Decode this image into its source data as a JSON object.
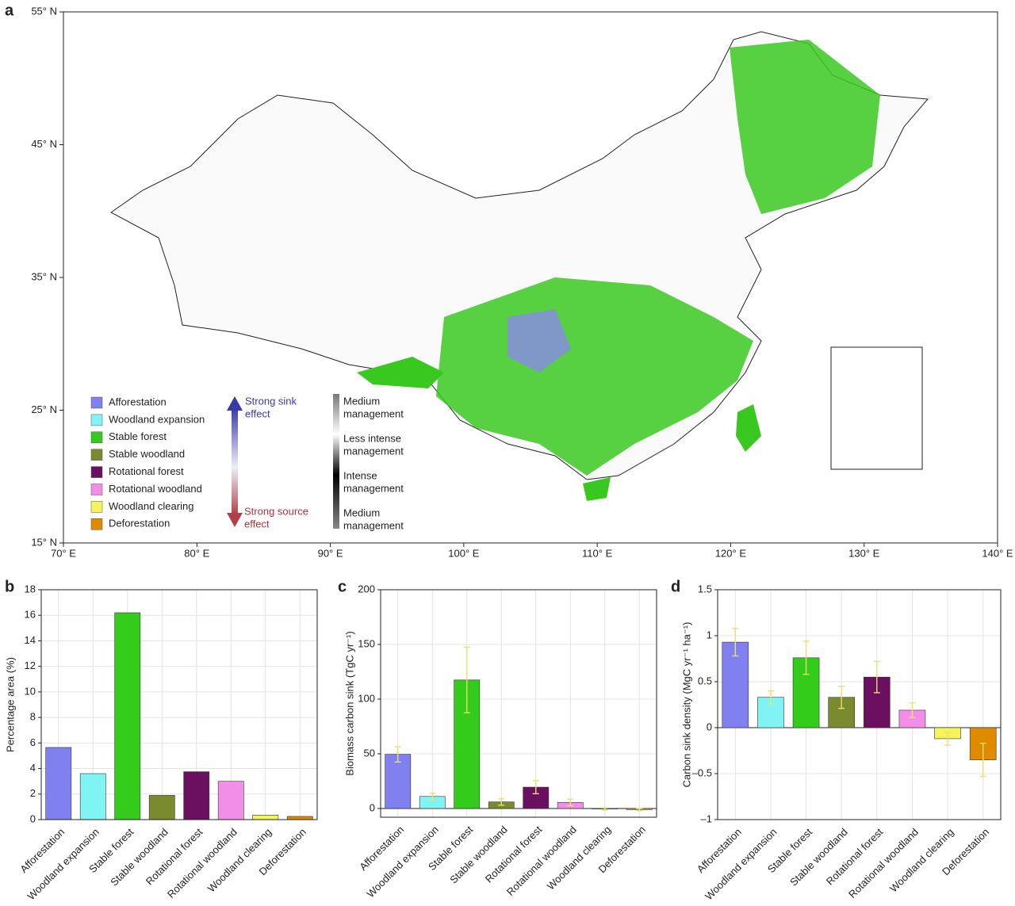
{
  "chart_data": [
    {
      "type": "map",
      "label": "a",
      "xlim": [
        70,
        140
      ],
      "xticks": [
        {
          "value": 70,
          "label": "70° E"
        },
        {
          "value": 80,
          "label": "80° E"
        },
        {
          "value": 90,
          "label": "90° E"
        },
        {
          "value": 100,
          "label": "100° E"
        },
        {
          "value": 110,
          "label": "110° E"
        },
        {
          "value": 120,
          "label": "120° E"
        },
        {
          "value": 130,
          "label": "130° E"
        },
        {
          "value": 140,
          "label": "140° E"
        }
      ],
      "ylim": [
        15,
        55
      ],
      "yticks": [
        {
          "value": 15,
          "label": "15° N"
        },
        {
          "value": 25,
          "label": "25° N"
        },
        {
          "value": 35,
          "label": "35° N"
        },
        {
          "value": 45,
          "label": "45° N"
        },
        {
          "value": 55,
          "label": "55° N"
        }
      ],
      "legend": [
        {
          "name": "Afforestation",
          "color": "#8080f0"
        },
        {
          "name": "Woodland expansion",
          "color": "#80f4f4"
        },
        {
          "name": "Stable forest",
          "color": "#33cc1a"
        },
        {
          "name": "Stable woodland",
          "color": "#7a8a2e"
        },
        {
          "name": "Rotational forest",
          "color": "#6b1060"
        },
        {
          "name": "Rotational woodland",
          "color": "#f28ee8"
        },
        {
          "name": "Woodland clearing",
          "color": "#f5f55a"
        },
        {
          "name": "Deforestation",
          "color": "#e08a00"
        }
      ],
      "sink_label": [
        "Strong sink",
        "effect"
      ],
      "source_label": [
        "Strong source",
        "effect"
      ],
      "management_labels": [
        [
          "Medium",
          "management"
        ],
        [
          "Less intense",
          "management"
        ],
        [
          "Intense",
          "management"
        ],
        [
          "Medium",
          "management"
        ]
      ]
    },
    {
      "type": "bar",
      "label": "b",
      "ylabel": "Percentage area (%)",
      "categories": [
        "Afforestation",
        "Woodland expansion",
        "Stable forest",
        "Stable woodland",
        "Rotational forest",
        "Rotational woodland",
        "Woodland clearing",
        "Deforestation"
      ],
      "colors": [
        "#8080f0",
        "#80f4f4",
        "#33cc1a",
        "#7a8a2e",
        "#6b1060",
        "#f28ee8",
        "#f5f55a",
        "#e08a00"
      ],
      "values": [
        5.65,
        3.6,
        16.2,
        1.9,
        3.75,
        3.0,
        0.35,
        0.25
      ],
      "ylim": [
        0,
        18
      ],
      "yticks": [
        0,
        2,
        4,
        6,
        8,
        10,
        12,
        14,
        16,
        18
      ],
      "grid": true
    },
    {
      "type": "bar",
      "label": "c",
      "ylabel": "Biomass carbon sink (TgC yr⁻¹)",
      "categories": [
        "Afforestation",
        "Woodland expansion",
        "Stable forest",
        "Stable woodland",
        "Rotational forest",
        "Rotational woodland",
        "Woodland clearing",
        "Deforestation"
      ],
      "colors": [
        "#8080f0",
        "#80f4f4",
        "#33cc1a",
        "#7a8a2e",
        "#6b1060",
        "#f28ee8",
        "#f5f55a",
        "#e08a00"
      ],
      "values": [
        49.5,
        11,
        117.5,
        6,
        19.5,
        5.5,
        -0.5,
        -1
      ],
      "errors": [
        7,
        3,
        30,
        3,
        6,
        3,
        1,
        1
      ],
      "ylim": [
        -8,
        200
      ],
      "yticks": [
        0,
        50,
        100,
        150,
        200
      ],
      "grid": true
    },
    {
      "type": "bar",
      "label": "d",
      "ylabel": "Carbon sink density (MgC yr⁻¹ ha⁻¹)",
      "categories": [
        "Afforestation",
        "Woodland expansion",
        "Stable forest",
        "Stable woodland",
        "Rotational forest",
        "Rotational woodland",
        "Woodland clearing",
        "Deforestation"
      ],
      "colors": [
        "#8080f0",
        "#80f4f4",
        "#33cc1a",
        "#7a8a2e",
        "#6b1060",
        "#f28ee8",
        "#f5f55a",
        "#e08a00"
      ],
      "values": [
        0.93,
        0.33,
        0.76,
        0.33,
        0.55,
        0.19,
        -0.12,
        -0.35
      ],
      "errors": [
        0.15,
        0.07,
        0.18,
        0.12,
        0.17,
        0.08,
        0.07,
        0.18
      ],
      "ylim": [
        -1,
        1.5
      ],
      "yticks": [
        {
          "value": -1,
          "label": "–1"
        },
        {
          "value": -0.5,
          "label": "–0.5"
        },
        0,
        0.5,
        1,
        1.5
      ],
      "grid": true
    }
  ]
}
